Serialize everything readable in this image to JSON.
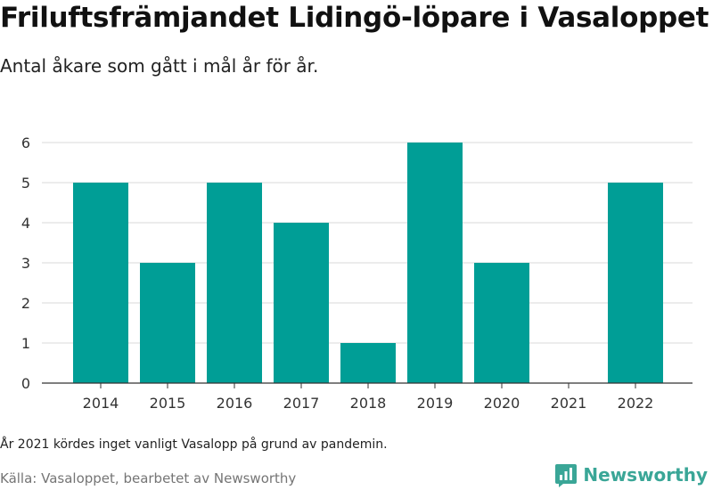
{
  "header": {
    "title": "Friluftsfrämjandet Lidingö-löpare i Vasaloppet",
    "subtitle": "Antal åkare som gått i mål år för år."
  },
  "footer": {
    "note": "År 2021 kördes inget vanligt Vasalopp på grund av pandemin.",
    "source": "Källa: Vasaloppet, bearbetet av Newsworthy",
    "brand": "Newsworthy",
    "brand_icon": "newsworthy-logo-icon"
  },
  "colors": {
    "bar": "#009e96",
    "grid": "#d9d9d9",
    "brand": "#3aa697"
  },
  "chart_data": {
    "type": "bar",
    "title": "Friluftsfrämjandet Lidingö-löpare i Vasaloppet",
    "subtitle": "Antal åkare som gått i mål år för år.",
    "xlabel": "",
    "ylabel": "",
    "categories": [
      "2014",
      "2015",
      "2016",
      "2017",
      "2018",
      "2019",
      "2020",
      "2021",
      "2022"
    ],
    "values": [
      5,
      3,
      5,
      4,
      1,
      6,
      3,
      0,
      5
    ],
    "ylim": [
      0,
      6
    ],
    "yticks": [
      0,
      1,
      2,
      3,
      4,
      5,
      6
    ],
    "grid": true,
    "legend": "none"
  }
}
